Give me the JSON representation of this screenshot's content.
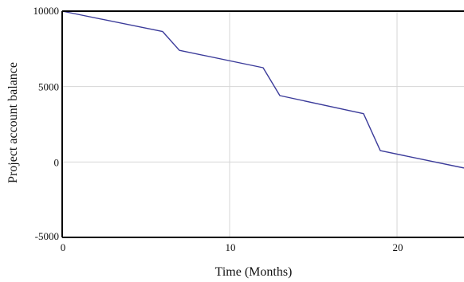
{
  "chart_data": {
    "type": "line",
    "title": "",
    "xlabel": "Time (Months)",
    "ylabel": "Project account balance",
    "xlim": [
      0,
      24
    ],
    "ylim": [
      -5000,
      10000
    ],
    "x_ticks": [
      0,
      10,
      20
    ],
    "y_ticks": [
      10000,
      5000,
      0,
      -5000
    ],
    "x_tick_labels": [
      "0",
      "10",
      "20"
    ],
    "y_tick_labels": [
      "10000",
      "5000",
      "0",
      "-5000"
    ],
    "grid": true,
    "legend": "none",
    "colors": {
      "line": "#3b3b9a",
      "grid": "#d6d6d6",
      "frame": "#000000"
    },
    "series": [
      {
        "x": [
          0,
          6,
          7,
          12,
          13,
          18,
          19,
          24
        ],
        "y": [
          10000,
          8650,
          7400,
          6250,
          4400,
          3200,
          750,
          -400
        ]
      }
    ]
  }
}
